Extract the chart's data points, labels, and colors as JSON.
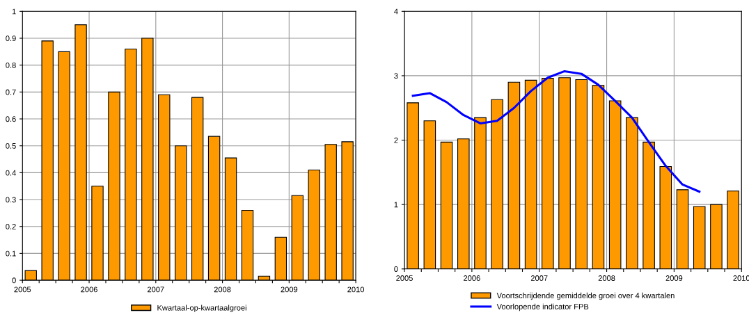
{
  "chart_data": [
    {
      "type": "bar",
      "x": [
        2005.125,
        2005.375,
        2005.625,
        2005.875,
        2006.125,
        2006.375,
        2006.625,
        2006.875,
        2007.125,
        2007.375,
        2007.625,
        2007.875,
        2008.125,
        2008.375,
        2008.625,
        2008.875,
        2009.125,
        2009.375,
        2009.625,
        2009.875
      ],
      "series": [
        {
          "name": "Kwartaal-op-kwartaalgroei",
          "color": "#ff9900",
          "values": [
            0.036,
            0.89,
            0.85,
            0.95,
            0.35,
            0.7,
            0.86,
            0.9,
            0.69,
            0.5,
            0.68,
            0.535,
            0.455,
            0.26,
            0.015,
            0.16,
            0.315,
            0.41,
            0.505,
            0.515
          ]
        }
      ],
      "xlim": [
        2005,
        2010
      ],
      "xticks": [
        2005,
        {
          "value": 2005.25,
          "label": null
        },
        {
          "value": 2005.5,
          "label": null
        },
        {
          "value": 2005.75,
          "label": null
        },
        2006,
        {
          "value": 2006.25,
          "label": null
        },
        {
          "value": 2006.5,
          "label": null
        },
        {
          "value": 2006.75,
          "label": null
        },
        2007,
        {
          "value": 2007.25,
          "label": null
        },
        {
          "value": 2007.5,
          "label": null
        },
        {
          "value": 2007.75,
          "label": null
        },
        2008,
        {
          "value": 2008.25,
          "label": null
        },
        {
          "value": 2008.5,
          "label": null
        },
        {
          "value": 2008.75,
          "label": null
        },
        2009,
        {
          "value": 2009.25,
          "label": null
        },
        {
          "value": 2009.5,
          "label": null
        },
        {
          "value": 2009.75,
          "label": null
        },
        2010
      ],
      "ylim": [
        0,
        1
      ],
      "yticks": [
        0,
        0.1,
        0.2,
        0.3,
        0.4,
        0.5,
        0.6,
        0.7,
        0.8,
        0.9,
        1
      ],
      "grid": true,
      "legend": "bottom"
    },
    {
      "type": "bar",
      "x": [
        2005.125,
        2005.375,
        2005.625,
        2005.875,
        2006.125,
        2006.375,
        2006.625,
        2006.875,
        2007.125,
        2007.375,
        2007.625,
        2007.875,
        2008.125,
        2008.375,
        2008.625,
        2008.875,
        2009.125,
        2009.375,
        2009.625,
        2009.875
      ],
      "series": [
        {
          "name": "Voortschrijdende gemiddelde groei over 4 kwartalen",
          "color": "#ff9900",
          "values": [
            2.58,
            2.3,
            1.97,
            2.02,
            2.35,
            2.63,
            2.9,
            2.93,
            2.96,
            2.97,
            2.94,
            2.85,
            2.61,
            2.35,
            1.97,
            1.59,
            1.23,
            0.97,
            1.0,
            1.21
          ]
        },
        {
          "name": "Voorlopende indicator FPB",
          "color": "#0000ff",
          "type": "line",
          "line_style": "solid",
          "marker": "none",
          "values": [
            2.69,
            2.73,
            2.59,
            2.39,
            2.26,
            2.3,
            2.5,
            2.76,
            2.97,
            3.07,
            3.03,
            2.86,
            2.61,
            2.35,
            1.97,
            1.6,
            1.31,
            1.2,
            null,
            null
          ]
        }
      ],
      "xlim": [
        2005,
        2010
      ],
      "xticks": [
        2005,
        {
          "value": 2005.25,
          "label": null
        },
        {
          "value": 2005.5,
          "label": null
        },
        {
          "value": 2005.75,
          "label": null
        },
        2006,
        {
          "value": 2006.25,
          "label": null
        },
        {
          "value": 2006.5,
          "label": null
        },
        {
          "value": 2006.75,
          "label": null
        },
        2007,
        {
          "value": 2007.25,
          "label": null
        },
        {
          "value": 2007.5,
          "label": null
        },
        {
          "value": 2007.75,
          "label": null
        },
        2008,
        {
          "value": 2008.25,
          "label": null
        },
        {
          "value": 2008.5,
          "label": null
        },
        {
          "value": 2008.75,
          "label": null
        },
        2009,
        {
          "value": 2009.25,
          "label": null
        },
        {
          "value": 2009.5,
          "label": null
        },
        {
          "value": 2009.75,
          "label": null
        },
        2010
      ],
      "ylim": [
        0,
        4
      ],
      "yticks": [
        0,
        1,
        2,
        3,
        4
      ],
      "grid": true,
      "legend": "bottom"
    }
  ]
}
